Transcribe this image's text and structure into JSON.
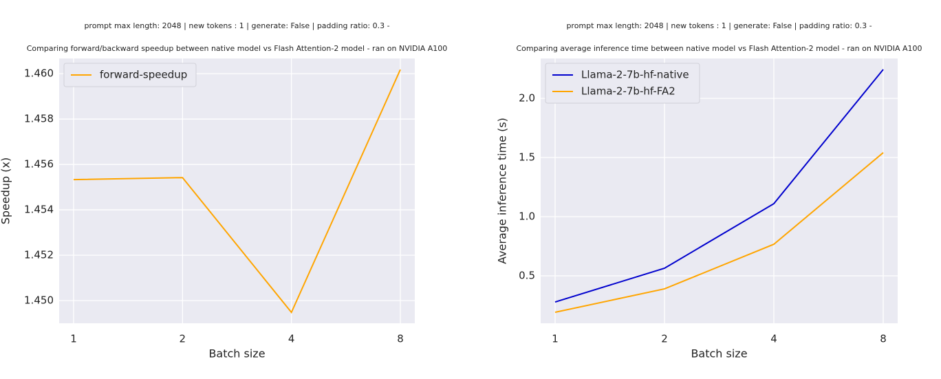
{
  "chart_data": [
    {
      "type": "line",
      "subtitle": "prompt max length: 2048 | new tokens : 1 | generate: False | padding ratio: 0.3 -",
      "title": "Comparing forward/backward speedup between native model vs Flash Attention-2 model - ran on NVIDIA A100",
      "x_label": "Batch size",
      "y_label": "Speedup (x)",
      "categories": [
        "1",
        "2",
        "4",
        "8"
      ],
      "series": [
        {
          "name": "forward-speedup",
          "color": "#ffa500",
          "values": [
            1.45533,
            1.45542,
            1.44948,
            1.46018
          ]
        }
      ],
      "ylim": [
        1.449,
        1.46067
      ],
      "yticks": [
        {
          "value": 1.45,
          "label": "1.450"
        },
        {
          "value": 1.452,
          "label": "1.452"
        },
        {
          "value": 1.454,
          "label": "1.454"
        },
        {
          "value": 1.456,
          "label": "1.456"
        },
        {
          "value": 1.458,
          "label": "1.458"
        },
        {
          "value": 1.46,
          "label": "1.460"
        }
      ],
      "grid": true,
      "legend": "upper-left"
    },
    {
      "type": "line",
      "subtitle": "prompt max length: 2048 | new tokens : 1 | generate: False | padding ratio: 0.3 -",
      "title": "Comparing average inference time between native model vs Flash Attention-2 model - ran on NVIDIA A100",
      "x_label": "Batch size",
      "y_label": "Average inference time (s)",
      "categories": [
        "1",
        "2",
        "4",
        "8"
      ],
      "series": [
        {
          "name": "Llama-2-7b-hf-native",
          "color": "#0000cd",
          "values": [
            0.279,
            0.564,
            1.11,
            2.244
          ]
        },
        {
          "name": "Llama-2-7b-hf-FA2",
          "color": "#ffa500",
          "values": [
            0.192,
            0.39,
            0.767,
            1.541
          ]
        }
      ],
      "ylim": [
        0.099,
        2.337
      ],
      "yticks": [
        0.5,
        {
          "value": 1.0,
          "label": "1.0"
        },
        1.5,
        {
          "value": 2.0,
          "label": "2.0"
        }
      ],
      "grid": true,
      "legend": "upper-left"
    }
  ]
}
